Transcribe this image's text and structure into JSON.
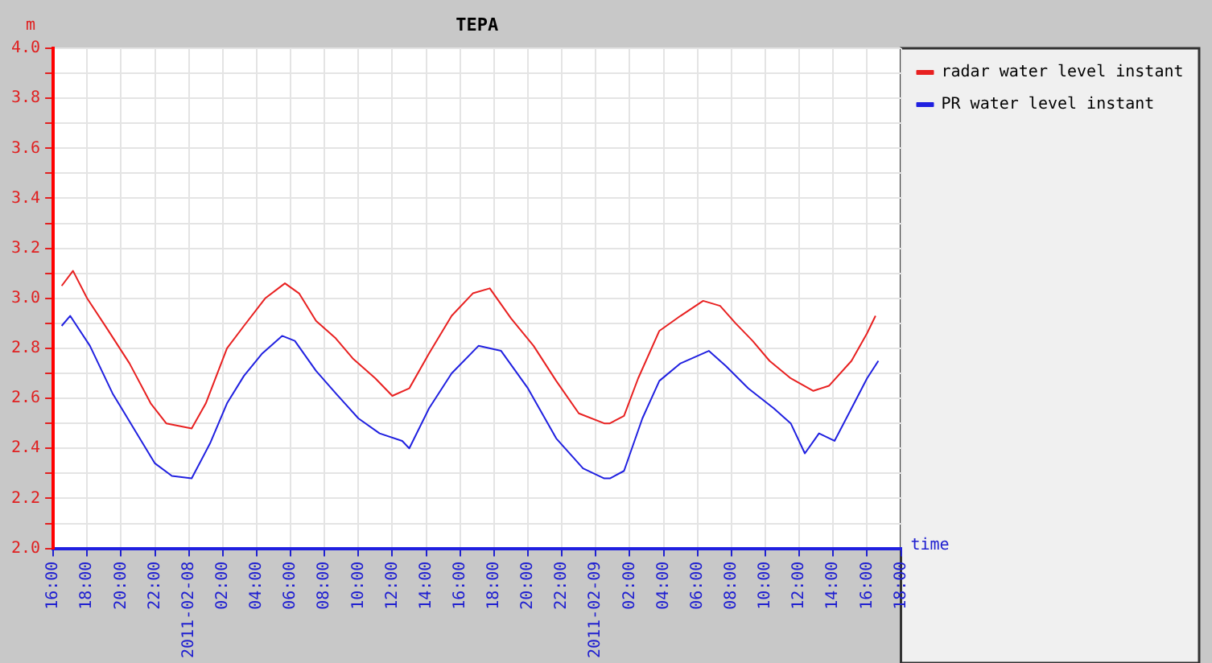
{
  "chart_data": {
    "type": "line",
    "title": "TEPA",
    "xlabel": "time",
    "ylabel": "m",
    "series": [
      {
        "name": "radar water level instant",
        "color": "#e82020",
        "x": [
          "2011-02-07T16:30",
          "2011-02-07T17:10",
          "2011-02-07T18:00",
          "2011-02-07T19:10",
          "2011-02-07T20:30",
          "2011-02-07T21:45",
          "2011-02-07T22:40",
          "2011-02-08T00:10",
          "2011-02-08T01:00",
          "2011-02-08T02:15",
          "2011-02-08T03:15",
          "2011-02-08T04:30",
          "2011-02-08T05:40",
          "2011-02-08T06:30",
          "2011-02-08T07:30",
          "2011-02-08T08:40",
          "2011-02-08T09:40",
          "2011-02-08T11:00",
          "2011-02-08T12:00",
          "2011-02-08T13:00",
          "2011-02-08T14:10",
          "2011-02-08T15:30",
          "2011-02-08T16:45",
          "2011-02-08T17:45",
          "2011-02-08T19:00",
          "2011-02-08T20:20",
          "2011-02-08T21:40",
          "2011-02-08T23:00",
          "2011-02-09T00:30",
          "2011-02-09T00:50",
          "2011-02-09T01:40",
          "2011-02-09T02:30",
          "2011-02-09T03:45",
          "2011-02-09T05:00",
          "2011-02-09T06:20",
          "2011-02-09T07:20",
          "2011-02-09T08:15",
          "2011-02-09T09:15",
          "2011-02-09T10:15",
          "2011-02-09T11:30",
          "2011-02-09T12:50",
          "2011-02-09T13:45",
          "2011-02-09T15:05",
          "2011-02-09T16:00",
          "2011-02-09T16:30"
        ],
        "values": [
          3.05,
          3.11,
          3.0,
          2.88,
          2.74,
          2.58,
          2.5,
          2.48,
          2.58,
          2.8,
          2.89,
          3.0,
          3.06,
          3.02,
          2.91,
          2.84,
          2.76,
          2.68,
          2.61,
          2.64,
          2.78,
          2.93,
          3.02,
          3.04,
          2.92,
          2.81,
          2.67,
          2.54,
          2.5,
          2.5,
          2.53,
          2.68,
          2.87,
          2.93,
          2.99,
          2.97,
          2.9,
          2.83,
          2.75,
          2.68,
          2.63,
          2.65,
          2.75,
          2.86,
          2.93
        ]
      },
      {
        "name": "PR water level instant",
        "color": "#2020e0",
        "x": [
          "2011-02-07T16:30",
          "2011-02-07T17:00",
          "2011-02-07T18:10",
          "2011-02-07T19:30",
          "2011-02-07T20:45",
          "2011-02-07T22:00",
          "2011-02-07T23:00",
          "2011-02-08T00:10",
          "2011-02-08T01:15",
          "2011-02-08T02:15",
          "2011-02-08T03:15",
          "2011-02-08T04:20",
          "2011-02-08T05:30",
          "2011-02-08T06:15",
          "2011-02-08T07:30",
          "2011-02-08T08:40",
          "2011-02-08T10:00",
          "2011-02-08T11:15",
          "2011-02-08T12:35",
          "2011-02-08T13:00",
          "2011-02-08T14:10",
          "2011-02-08T15:30",
          "2011-02-08T17:05",
          "2011-02-08T18:25",
          "2011-02-08T20:00",
          "2011-02-08T21:40",
          "2011-02-08T23:15",
          "2011-02-09T00:30",
          "2011-02-09T00:50",
          "2011-02-09T01:40",
          "2011-02-09T02:45",
          "2011-02-09T03:45",
          "2011-02-09T05:00",
          "2011-02-09T06:40",
          "2011-02-09T07:40",
          "2011-02-09T09:00",
          "2011-02-09T10:30",
          "2011-02-09T11:30",
          "2011-02-09T12:20",
          "2011-02-09T13:10",
          "2011-02-09T14:05",
          "2011-02-09T15:05",
          "2011-02-09T16:00",
          "2011-02-09T16:40"
        ],
        "values": [
          2.89,
          2.93,
          2.81,
          2.62,
          2.48,
          2.34,
          2.29,
          2.28,
          2.42,
          2.58,
          2.69,
          2.78,
          2.85,
          2.83,
          2.71,
          2.62,
          2.52,
          2.46,
          2.43,
          2.4,
          2.56,
          2.7,
          2.81,
          2.79,
          2.64,
          2.44,
          2.32,
          2.28,
          2.28,
          2.31,
          2.52,
          2.67,
          2.74,
          2.79,
          2.73,
          2.64,
          2.56,
          2.5,
          2.38,
          2.46,
          2.43,
          2.56,
          2.68,
          2.75
        ]
      }
    ],
    "xlim": [
      "2011-02-07T16:00",
      "2011-02-09T18:00"
    ],
    "xticks": [
      {
        "value": "2011-02-07T16:00",
        "label": "16:00"
      },
      {
        "value": "2011-02-07T18:00",
        "label": "18:00"
      },
      {
        "value": "2011-02-07T20:00",
        "label": "20:00"
      },
      {
        "value": "2011-02-07T22:00",
        "label": "22:00"
      },
      {
        "value": "2011-02-08T00:00",
        "label": "2011-02-08"
      },
      {
        "value": "2011-02-08T02:00",
        "label": "02:00"
      },
      {
        "value": "2011-02-08T04:00",
        "label": "04:00"
      },
      {
        "value": "2011-02-08T06:00",
        "label": "06:00"
      },
      {
        "value": "2011-02-08T08:00",
        "label": "08:00"
      },
      {
        "value": "2011-02-08T10:00",
        "label": "10:00"
      },
      {
        "value": "2011-02-08T12:00",
        "label": "12:00"
      },
      {
        "value": "2011-02-08T14:00",
        "label": "14:00"
      },
      {
        "value": "2011-02-08T16:00",
        "label": "16:00"
      },
      {
        "value": "2011-02-08T18:00",
        "label": "18:00"
      },
      {
        "value": "2011-02-08T20:00",
        "label": "20:00"
      },
      {
        "value": "2011-02-08T22:00",
        "label": "22:00"
      },
      {
        "value": "2011-02-09T00:00",
        "label": "2011-02-09"
      },
      {
        "value": "2011-02-09T02:00",
        "label": "02:00"
      },
      {
        "value": "2011-02-09T04:00",
        "label": "04:00"
      },
      {
        "value": "2011-02-09T06:00",
        "label": "06:00"
      },
      {
        "value": "2011-02-09T08:00",
        "label": "08:00"
      },
      {
        "value": "2011-02-09T10:00",
        "label": "10:00"
      },
      {
        "value": "2011-02-09T12:00",
        "label": "12:00"
      },
      {
        "value": "2011-02-09T14:00",
        "label": "14:00"
      },
      {
        "value": "2011-02-09T16:00",
        "label": "16:00"
      },
      {
        "value": "2011-02-09T18:00",
        "label": "18:00"
      }
    ],
    "ylim": [
      2.0,
      4.0
    ],
    "yticks": [
      {
        "value": 2.0,
        "label": "2.0"
      },
      {
        "value": 2.1,
        "label": null
      },
      {
        "value": 2.2,
        "label": "2.2"
      },
      {
        "value": 2.3,
        "label": null
      },
      {
        "value": 2.4,
        "label": "2.4"
      },
      {
        "value": 2.5,
        "label": null
      },
      {
        "value": 2.6,
        "label": "2.6"
      },
      {
        "value": 2.7,
        "label": null
      },
      {
        "value": 2.8,
        "label": "2.8"
      },
      {
        "value": 2.9,
        "label": null
      },
      {
        "value": 3.0,
        "label": "3.0"
      },
      {
        "value": 3.1,
        "label": null
      },
      {
        "value": 3.2,
        "label": "3.2"
      },
      {
        "value": 3.3,
        "label": null
      },
      {
        "value": 3.4,
        "label": "3.4"
      },
      {
        "value": 3.5,
        "label": null
      },
      {
        "value": 3.6,
        "label": "3.6"
      },
      {
        "value": 3.7,
        "label": null
      },
      {
        "value": 3.8,
        "label": "3.8"
      },
      {
        "value": 3.9,
        "label": null
      },
      {
        "value": 4.0,
        "label": "4.0"
      }
    ],
    "grid": true,
    "legend": "top right",
    "marker": "none",
    "line_style": "solid"
  }
}
